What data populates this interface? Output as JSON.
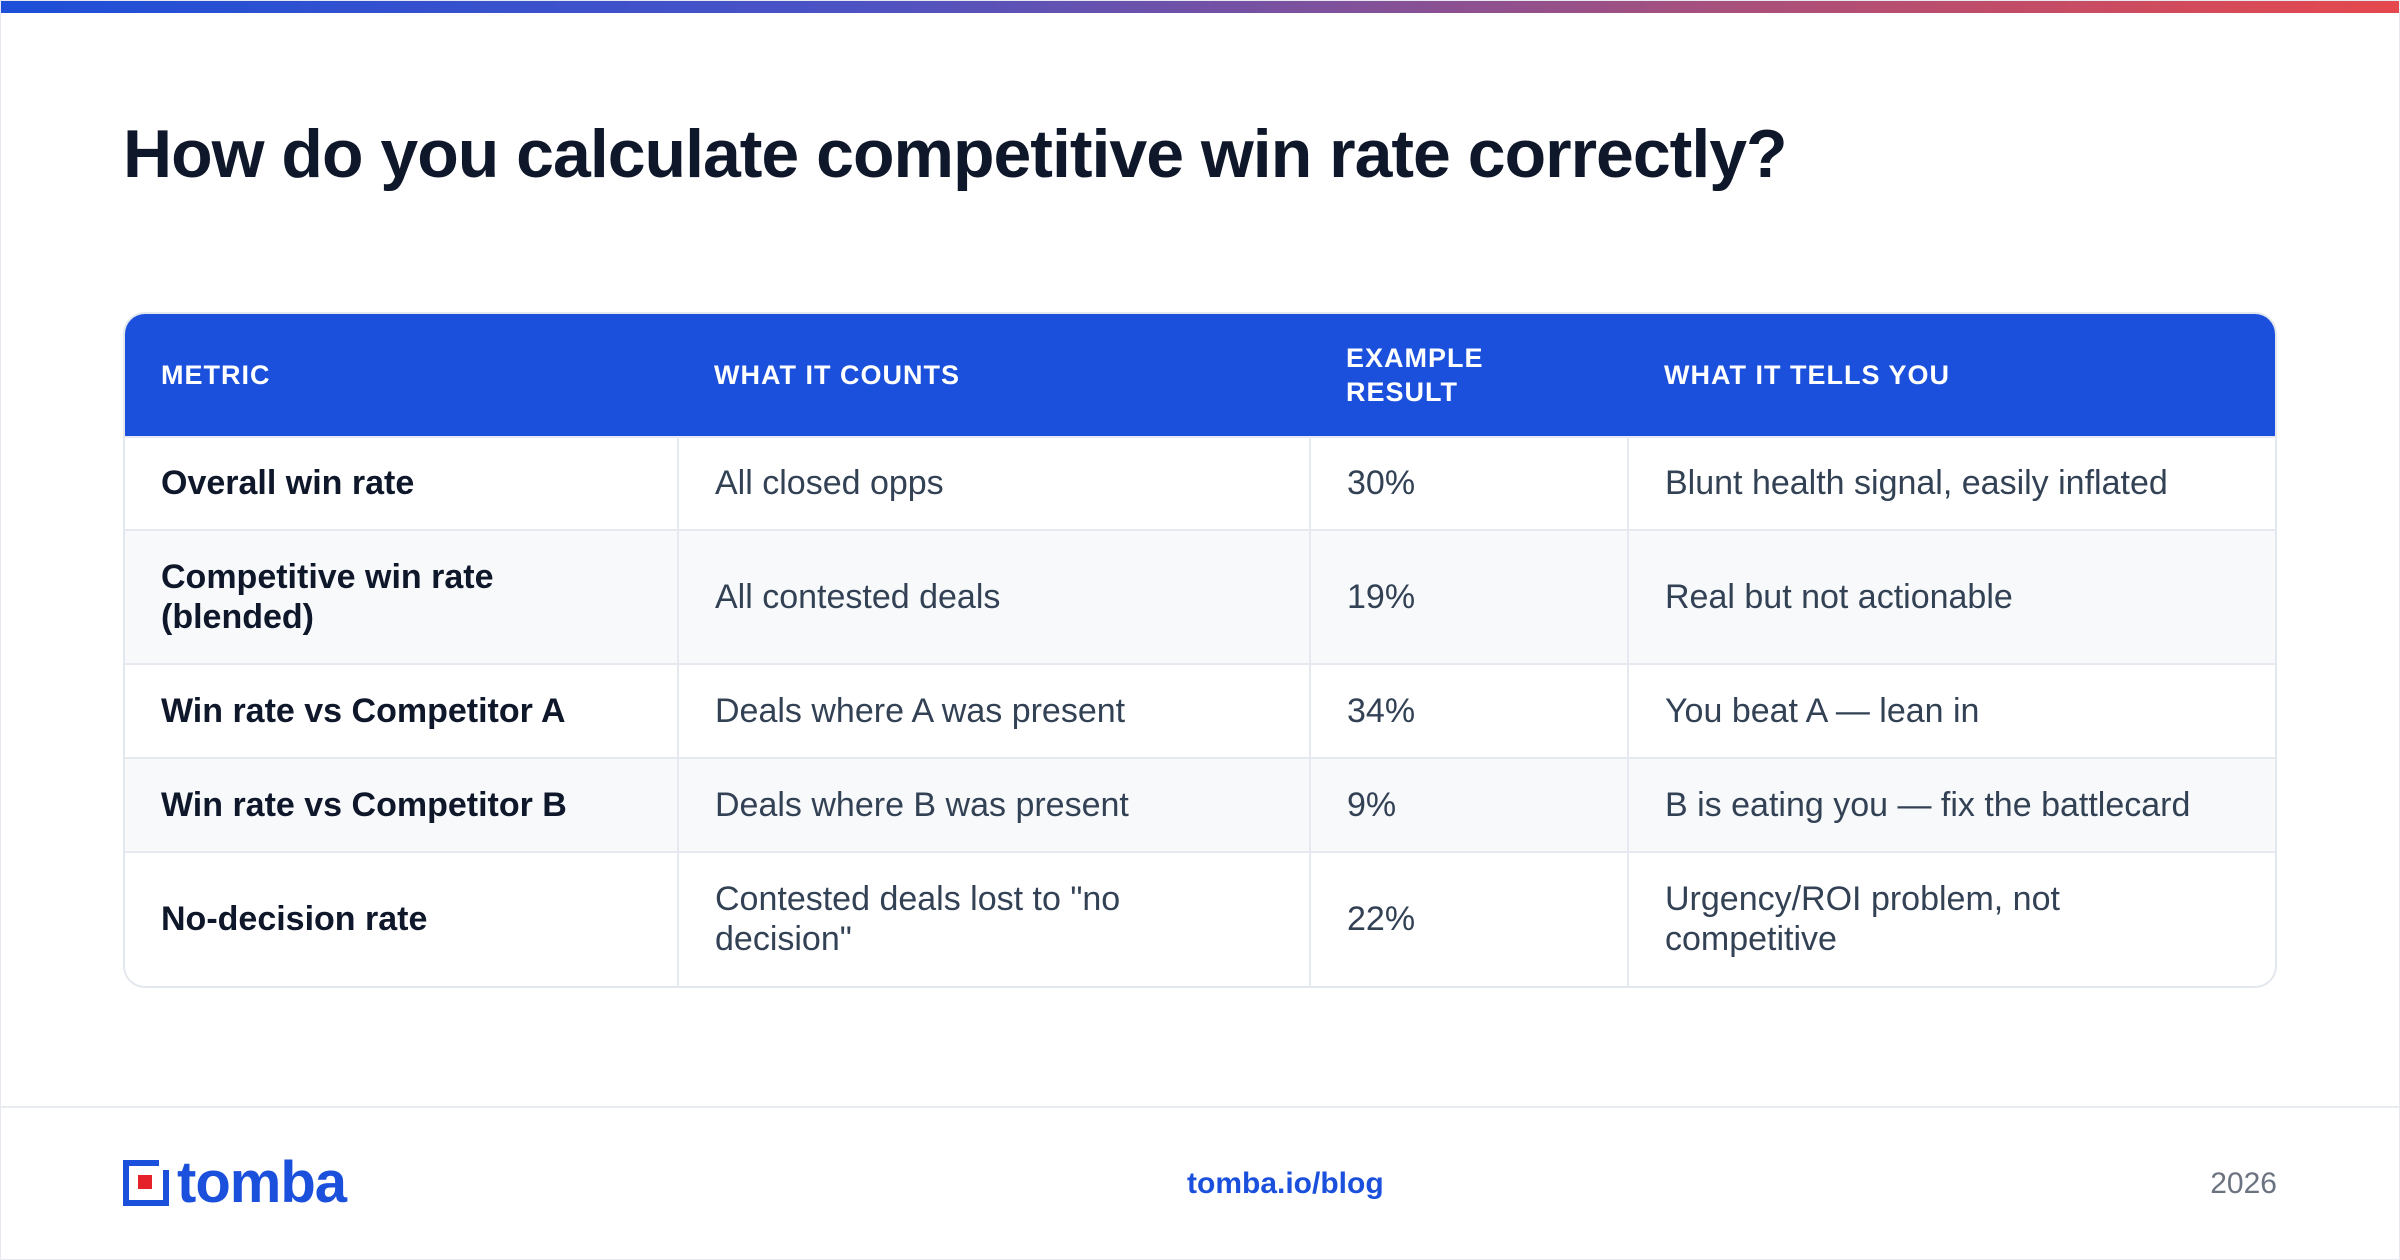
{
  "title": "How do you calculate competitive win rate correctly?",
  "colors": {
    "accent": "#1b50dc",
    "gradient_start": "#1d4fd8",
    "gradient_end": "#e5484d",
    "logo_red": "#e5222a"
  },
  "table": {
    "headers": [
      "METRIC",
      "WHAT IT COUNTS",
      "EXAMPLE RESULT",
      "WHAT IT TELLS YOU"
    ],
    "rows": [
      {
        "metric": "Overall win rate",
        "counts": "All closed opps",
        "result": "30%",
        "tells": "Blunt health signal, easily inflated"
      },
      {
        "metric": "Competitive win rate (blended)",
        "counts": "All contested deals",
        "result": "19%",
        "tells": "Real but not actionable"
      },
      {
        "metric": "Win rate vs Competitor A",
        "counts": "Deals where A was present",
        "result": "34%",
        "tells": "You beat A — lean in"
      },
      {
        "metric": "Win rate vs Competitor B",
        "counts": "Deals where B was present",
        "result": "9%",
        "tells": "B is eating you — fix the battlecard"
      },
      {
        "metric": "No-decision rate",
        "counts": "Contested deals lost to \"no decision\"",
        "result": "22%",
        "tells": "Urgency/ROI problem, not competitive"
      }
    ]
  },
  "footer": {
    "logo_text": "tomba",
    "logo_icon": "tomba-logo-icon",
    "url": "tomba.io/blog",
    "year": "2026"
  }
}
